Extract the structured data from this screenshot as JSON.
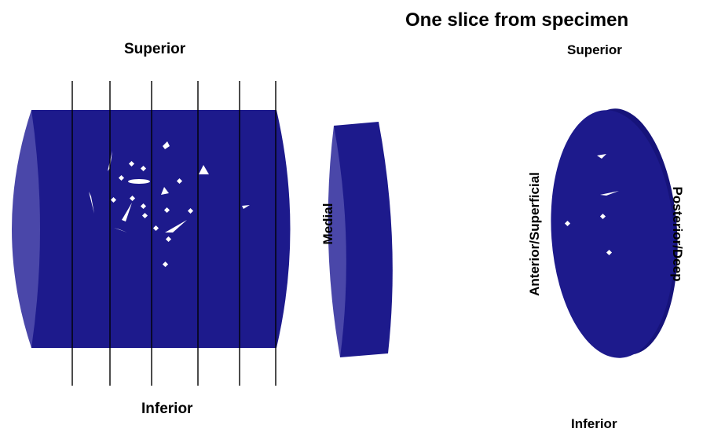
{
  "title": "One slice from specimen",
  "left_view": {
    "top_label": "Superior",
    "bottom_label": "Inferior"
  },
  "middle_view": {
    "side_label": "Medial"
  },
  "right_view": {
    "top_label": "Superior",
    "bottom_label": "Inferior",
    "left_label": "Anterior/Superficial",
    "right_label": "Posterior/Deep"
  },
  "colors": {
    "body_fill": "#1d1a8c",
    "end_face": "#4a47a9",
    "rim": "#16137a",
    "marker": "#ffffff",
    "cut_line": "#000000"
  }
}
